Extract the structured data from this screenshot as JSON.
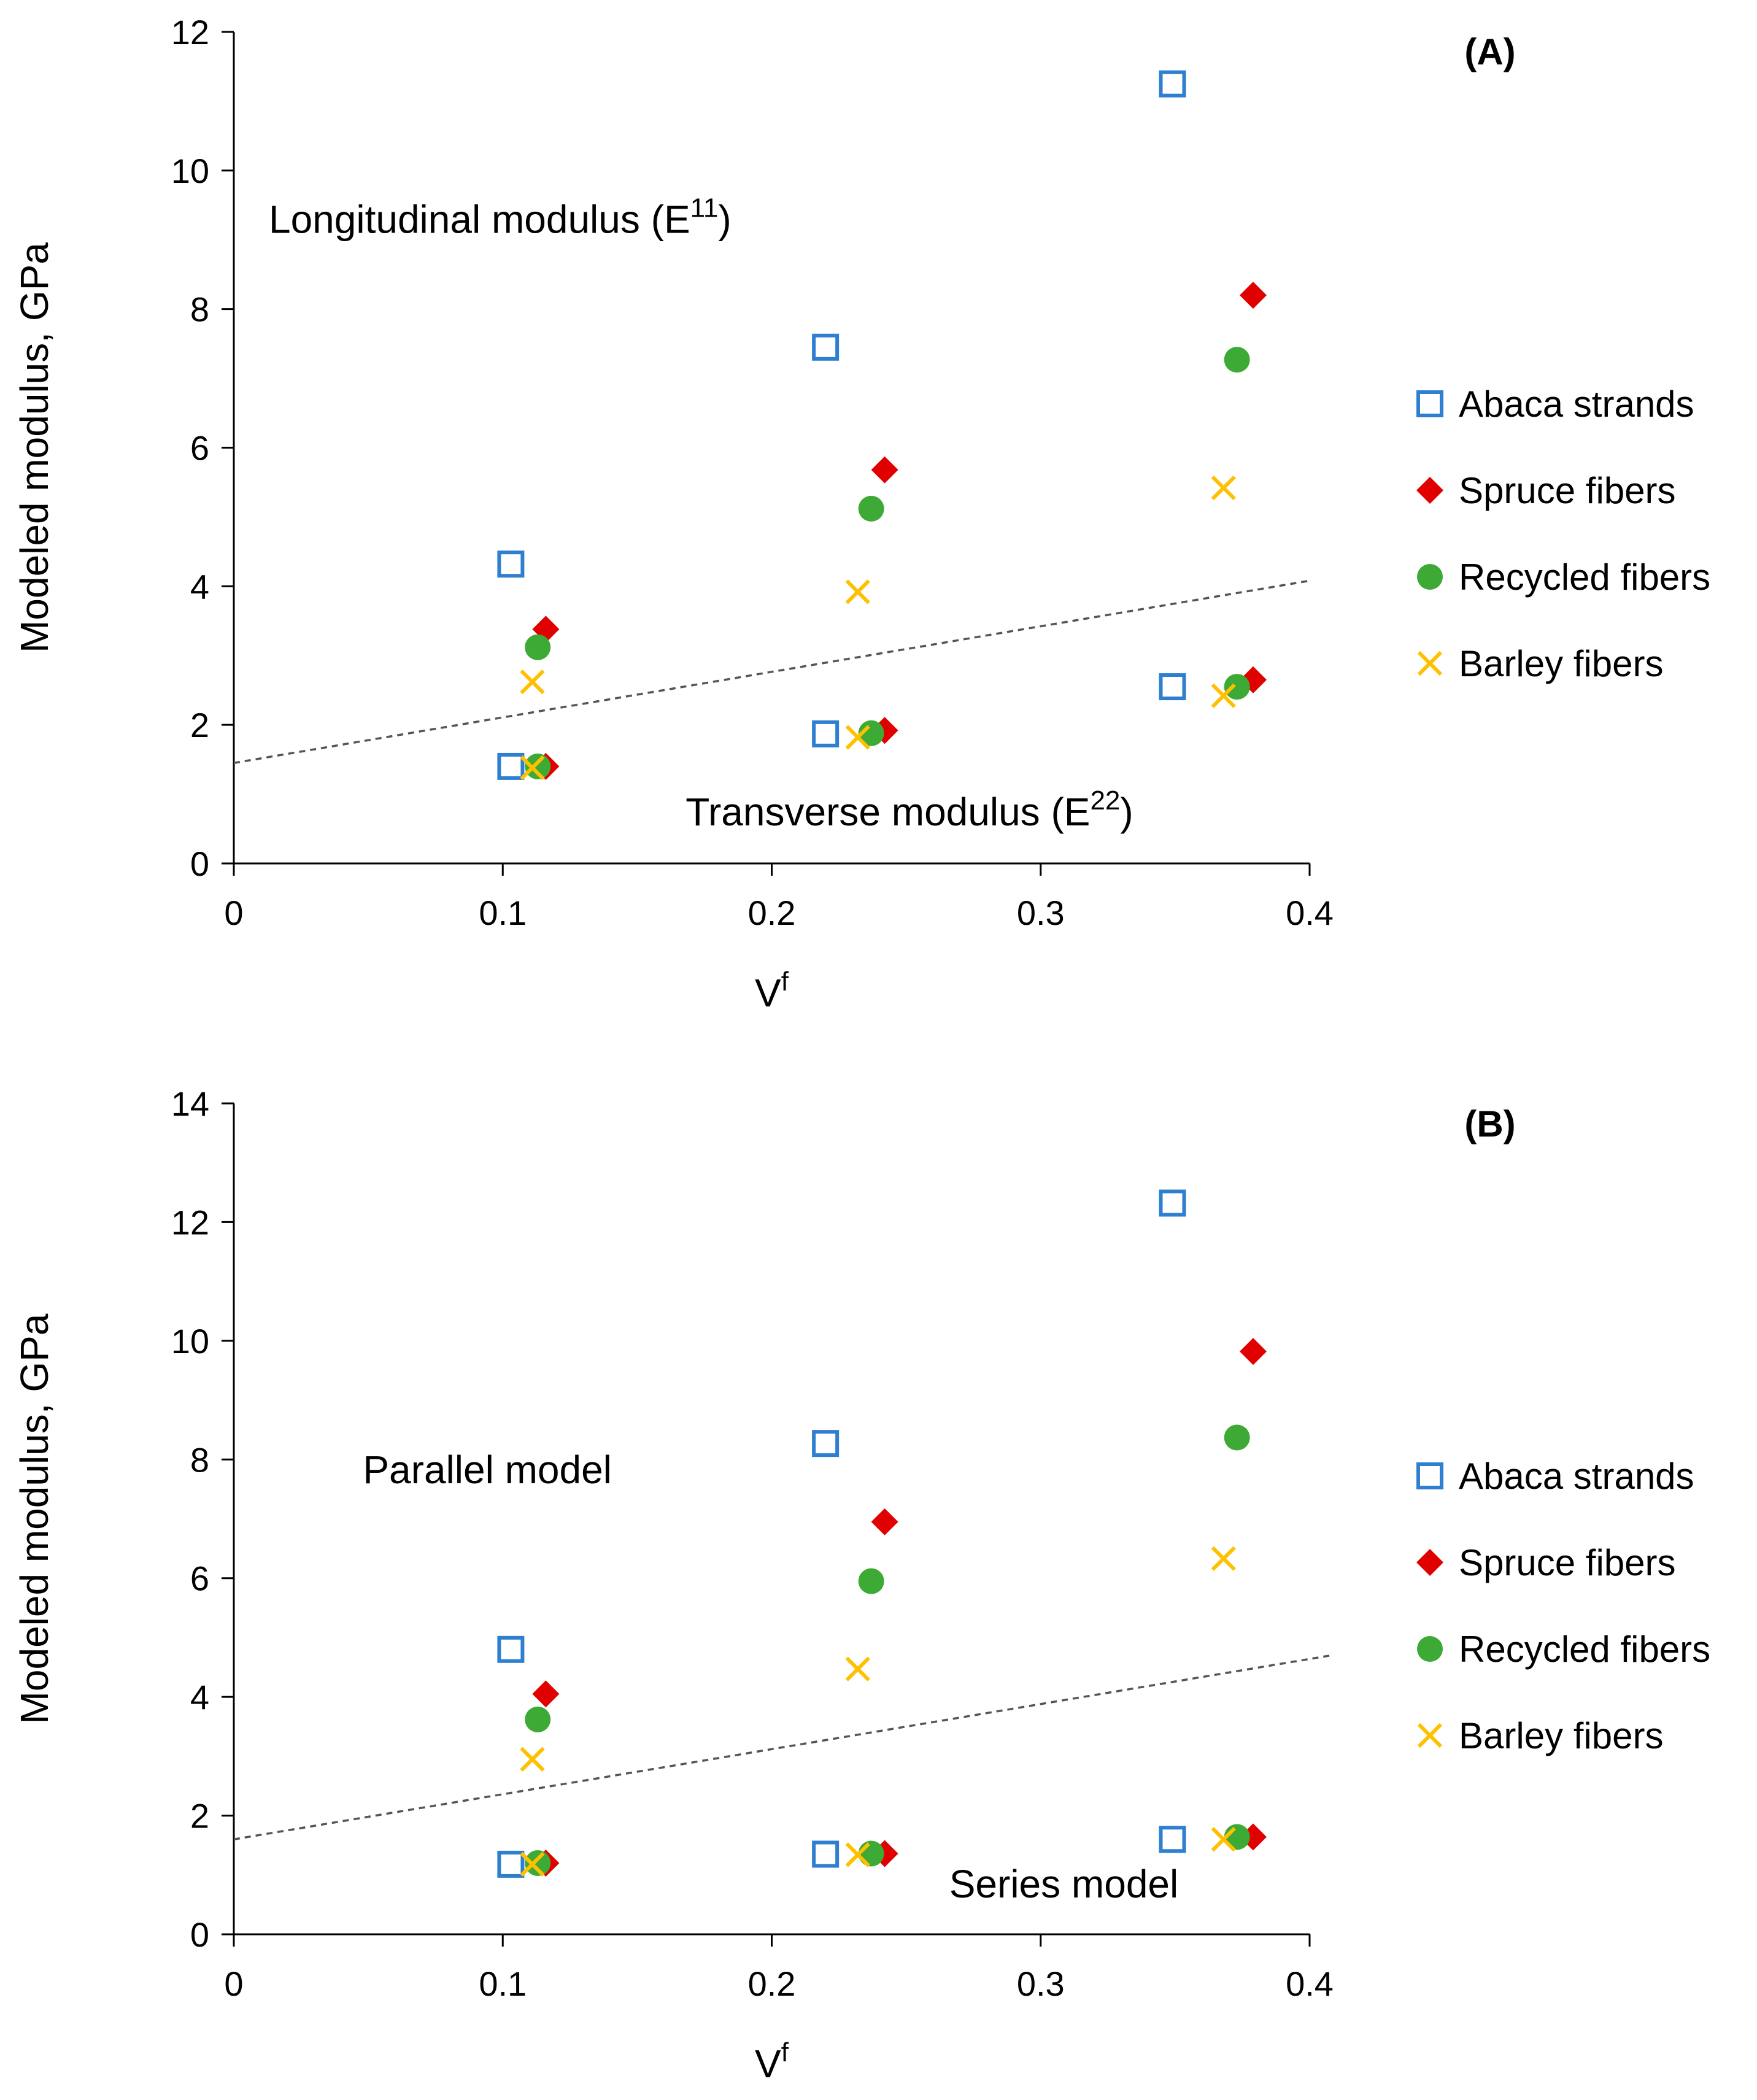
{
  "chart_data": [
    {
      "type": "scatter",
      "panel_label": "(A)",
      "xlabel": "V",
      "xlabel_sup": "f",
      "ylabel": "Modeled modulus, GPa",
      "xlim": [
        0,
        0.4
      ],
      "ylim": [
        0,
        12
      ],
      "xticks": [
        0,
        0.1,
        0.2,
        0.3,
        0.4
      ],
      "xtick_labels": [
        "0",
        "0.1",
        "0.2",
        "0.3",
        "0.4"
      ],
      "yticks": [
        0,
        2,
        4,
        6,
        8,
        10,
        12
      ],
      "ytick_labels": [
        "0",
        "2",
        "4",
        "6",
        "8",
        "10",
        "12"
      ],
      "grid": false,
      "legend_position": "right",
      "annotations": [
        {
          "id": "upper",
          "text": "Longitudinal modulus (E",
          "sup": "11",
          "suffix": ")",
          "x": 0.013,
          "y": 9.1
        },
        {
          "id": "lower",
          "text": "Transverse  modulus (E",
          "sup": "22",
          "suffix": ")",
          "x": 0.168,
          "y": 0.55
        }
      ],
      "divider_line": {
        "x": [
          0,
          0.4
        ],
        "y": [
          1.45,
          4.08
        ]
      },
      "series": [
        {
          "name": "Abaca strands",
          "marker": "open-square",
          "color": "#2E7FD0",
          "x": [
            0.103,
            0.22,
            0.349,
            0.103,
            0.22,
            0.349
          ],
          "y": [
            4.32,
            7.45,
            11.25,
            1.4,
            1.87,
            2.55
          ]
        },
        {
          "name": "Spruce fibers",
          "marker": "diamond",
          "color": "#E00000",
          "x": [
            0.116,
            0.242,
            0.379,
            0.116,
            0.242,
            0.379
          ],
          "y": [
            3.38,
            5.68,
            8.2,
            1.4,
            1.92,
            2.65
          ]
        },
        {
          "name": "Recycled fibers",
          "marker": "circle",
          "color": "#3DAA35",
          "x": [
            0.113,
            0.237,
            0.373,
            0.113,
            0.237,
            0.373
          ],
          "y": [
            3.12,
            5.12,
            7.27,
            1.4,
            1.88,
            2.55
          ]
        },
        {
          "name": "Barley fibers",
          "marker": "x",
          "color": "#FFC000",
          "x": [
            0.111,
            0.232,
            0.368,
            0.111,
            0.232,
            0.368
          ],
          "y": [
            2.62,
            3.92,
            5.42,
            1.38,
            1.82,
            2.42
          ]
        }
      ]
    },
    {
      "type": "scatter",
      "panel_label": "(B)",
      "xlabel": "V",
      "xlabel_sup": "f",
      "ylabel": "Modeled modulus, GPa",
      "xlim": [
        0,
        0.4
      ],
      "ylim": [
        0,
        14
      ],
      "xticks": [
        0,
        0.1,
        0.2,
        0.3,
        0.4
      ],
      "xtick_labels": [
        "0",
        "0.1",
        "0.2",
        "0.3",
        "0.4"
      ],
      "yticks": [
        0,
        2,
        4,
        6,
        8,
        10,
        12,
        14
      ],
      "ytick_labels": [
        "0",
        "2",
        "4",
        "6",
        "8",
        "10",
        "12",
        "14"
      ],
      "grid": false,
      "legend_position": "right",
      "annotations": [
        {
          "id": "upper",
          "text": "Parallel model",
          "sup": "",
          "suffix": "",
          "x": 0.048,
          "y": 7.6
        },
        {
          "id": "lower",
          "text": "Series model",
          "sup": "",
          "suffix": "",
          "x": 0.266,
          "y": 0.62
        }
      ],
      "divider_line": {
        "x": [
          0,
          0.408
        ],
        "y": [
          1.6,
          4.7
        ]
      },
      "series": [
        {
          "name": "Abaca strands",
          "marker": "open-square",
          "color": "#2E7FD0",
          "x": [
            0.103,
            0.22,
            0.349,
            0.103,
            0.22,
            0.349
          ],
          "y": [
            4.8,
            8.27,
            12.32,
            1.18,
            1.35,
            1.6
          ]
        },
        {
          "name": "Spruce fibers",
          "marker": "diamond",
          "color": "#E00000",
          "x": [
            0.116,
            0.242,
            0.379,
            0.116,
            0.242,
            0.379
          ],
          "y": [
            4.05,
            6.95,
            9.82,
            1.2,
            1.36,
            1.64
          ]
        },
        {
          "name": "Recycled fibers",
          "marker": "circle",
          "color": "#3DAA35",
          "x": [
            0.113,
            0.237,
            0.373,
            0.113,
            0.237,
            0.373
          ],
          "y": [
            3.62,
            5.95,
            8.37,
            1.2,
            1.36,
            1.64
          ]
        },
        {
          "name": "Barley fibers",
          "marker": "x",
          "color": "#FFC000",
          "x": [
            0.111,
            0.232,
            0.368,
            0.111,
            0.232,
            0.368
          ],
          "y": [
            2.95,
            4.47,
            6.33,
            1.18,
            1.34,
            1.6
          ]
        }
      ]
    }
  ]
}
